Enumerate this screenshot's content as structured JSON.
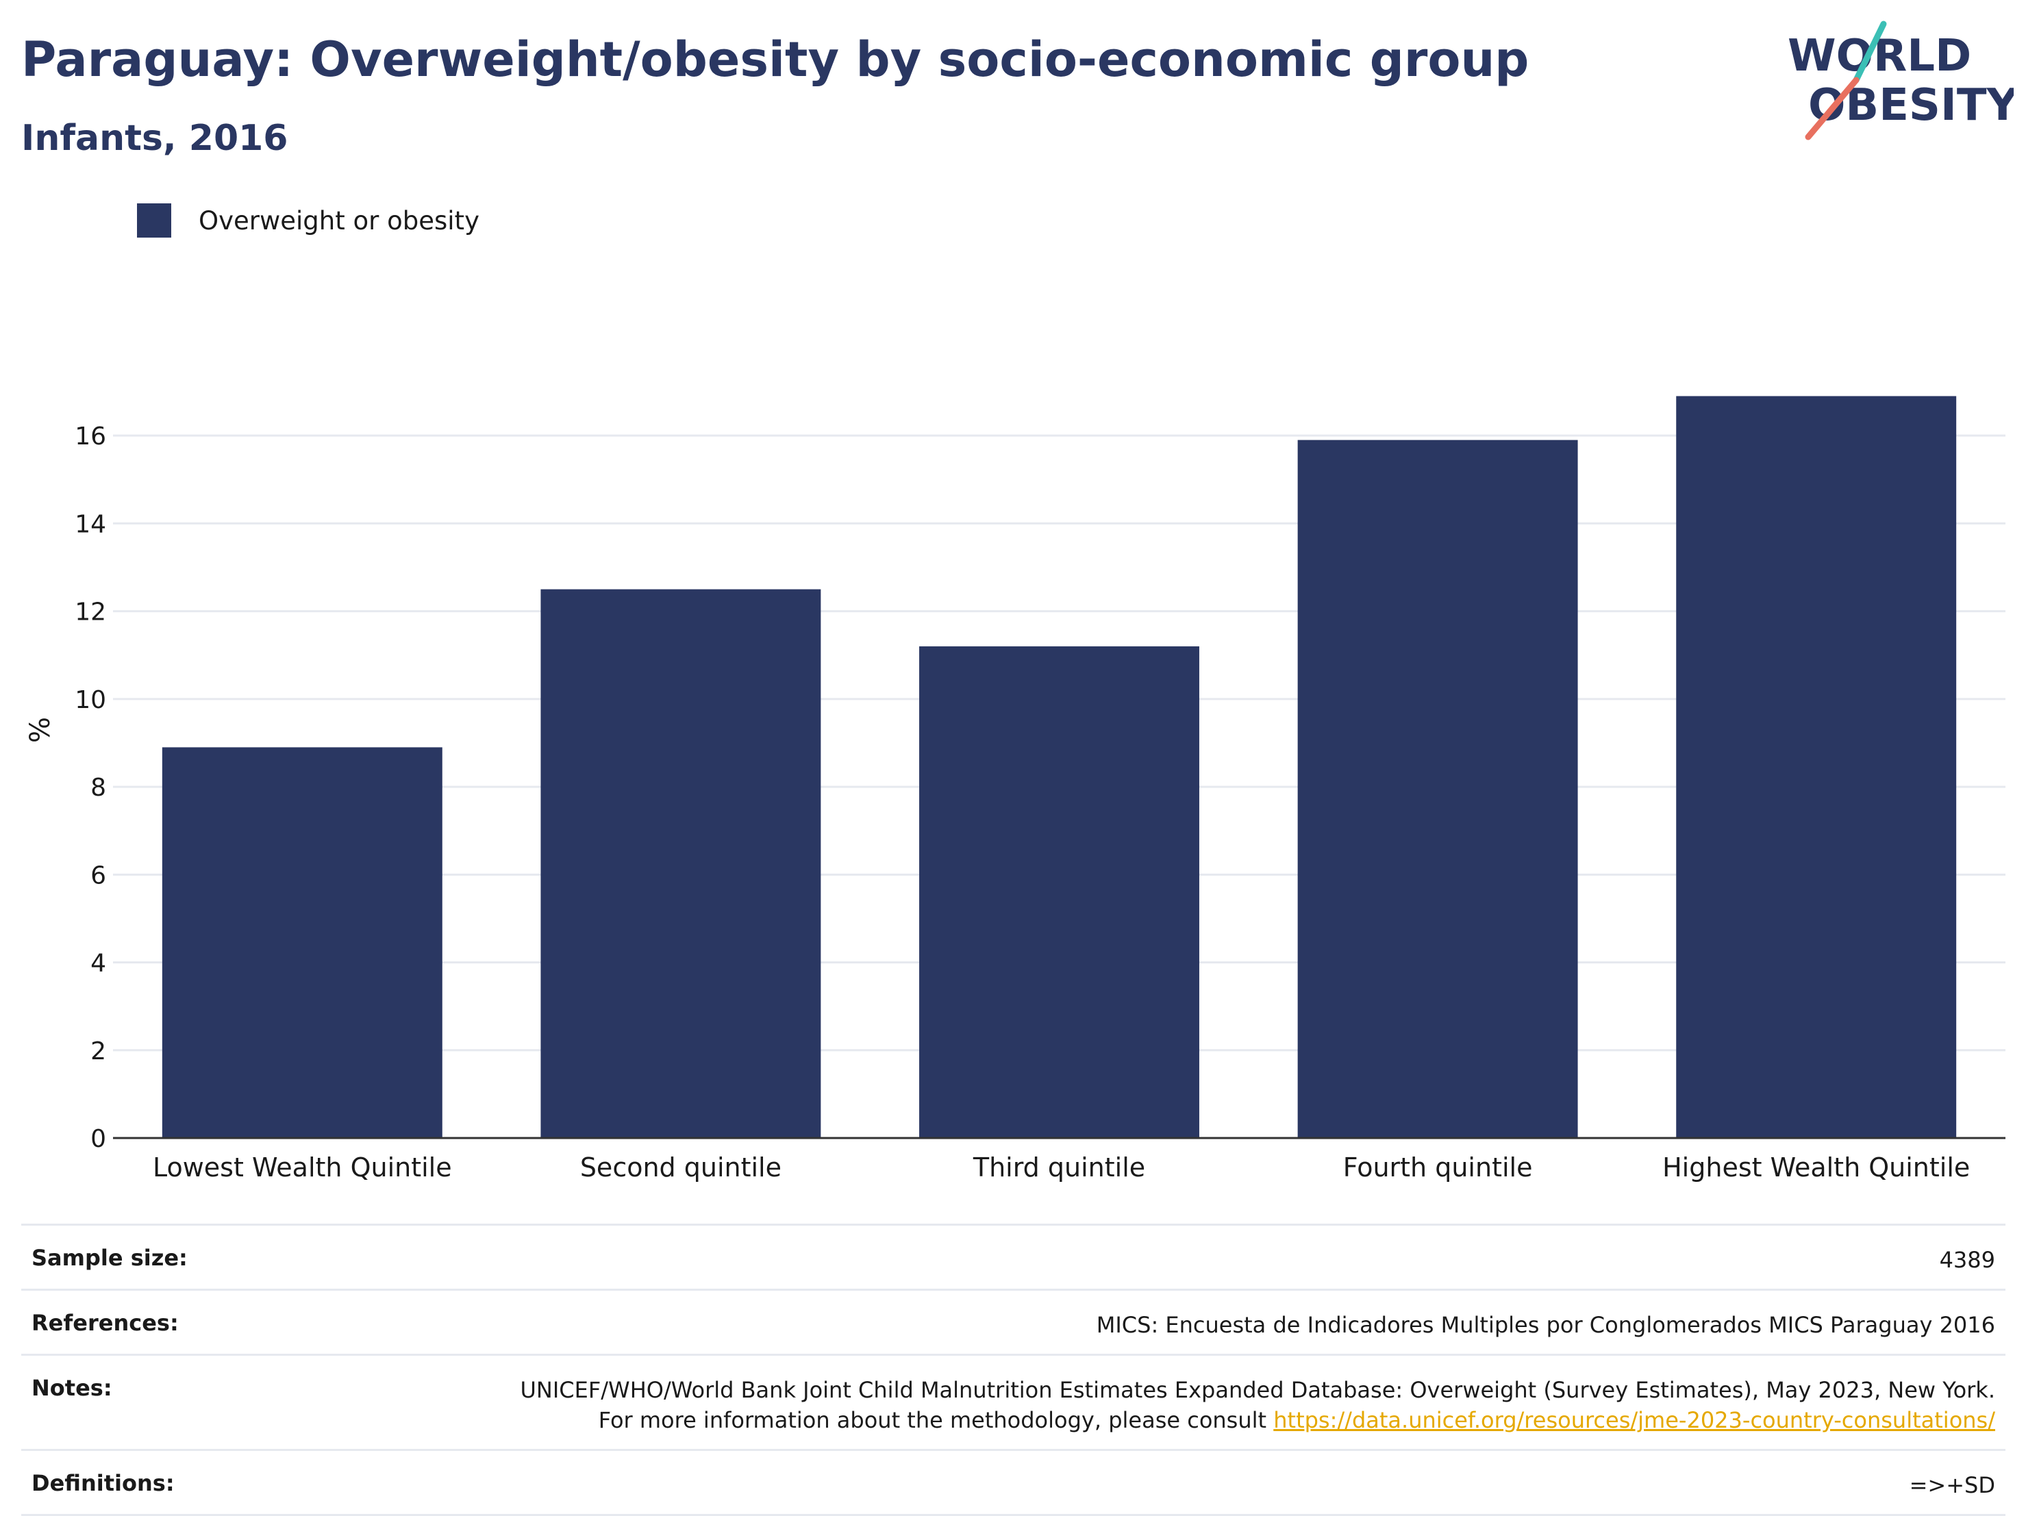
{
  "header": {
    "title": "Paraguay: Overweight/obesity by socio-economic group",
    "subtitle": "Infants, 2016"
  },
  "logo": {
    "line1": "WORLD",
    "line2": "OBESITY",
    "accent_teal": "#3bbfb5",
    "accent_coral": "#e8705f"
  },
  "colors": {
    "bar": "#2a3762",
    "title": "#2a3762",
    "gridline": "#e6e9ef",
    "link": "#e5a800"
  },
  "chart_data": {
    "type": "bar",
    "categories": [
      "Lowest Wealth Quintile",
      "Second quintile",
      "Third quintile",
      "Fourth quintile",
      "Highest Wealth Quintile"
    ],
    "series": [
      {
        "name": "Overweight or obesity",
        "values": [
          8.9,
          12.5,
          11.2,
          15.9,
          16.9
        ]
      }
    ],
    "ylabel": "%",
    "ylim": [
      0,
      17.5
    ],
    "yticks": [
      0,
      2,
      4,
      6,
      8,
      10,
      12,
      14,
      16
    ],
    "grid": true,
    "legend_position": "top-left"
  },
  "meta": {
    "sample_size_label": "Sample size:",
    "sample_size_value": "4389",
    "references_label": "References:",
    "references_value": "MICS: Encuesta de Indicadores Multiples por Conglomerados MICS Paraguay 2016",
    "notes_label": "Notes:",
    "notes_text": "UNICEF/WHO/World Bank Joint Child Malnutrition Estimates Expanded Database: Overweight (Survey Estimates), May 2023, New York. For more information about the methodology, please consult ",
    "notes_link": "https://data.unicef.org/resources/jme-2023-country-consultations/",
    "definitions_label": "Definitions:",
    "definitions_value": "=>+SD"
  }
}
